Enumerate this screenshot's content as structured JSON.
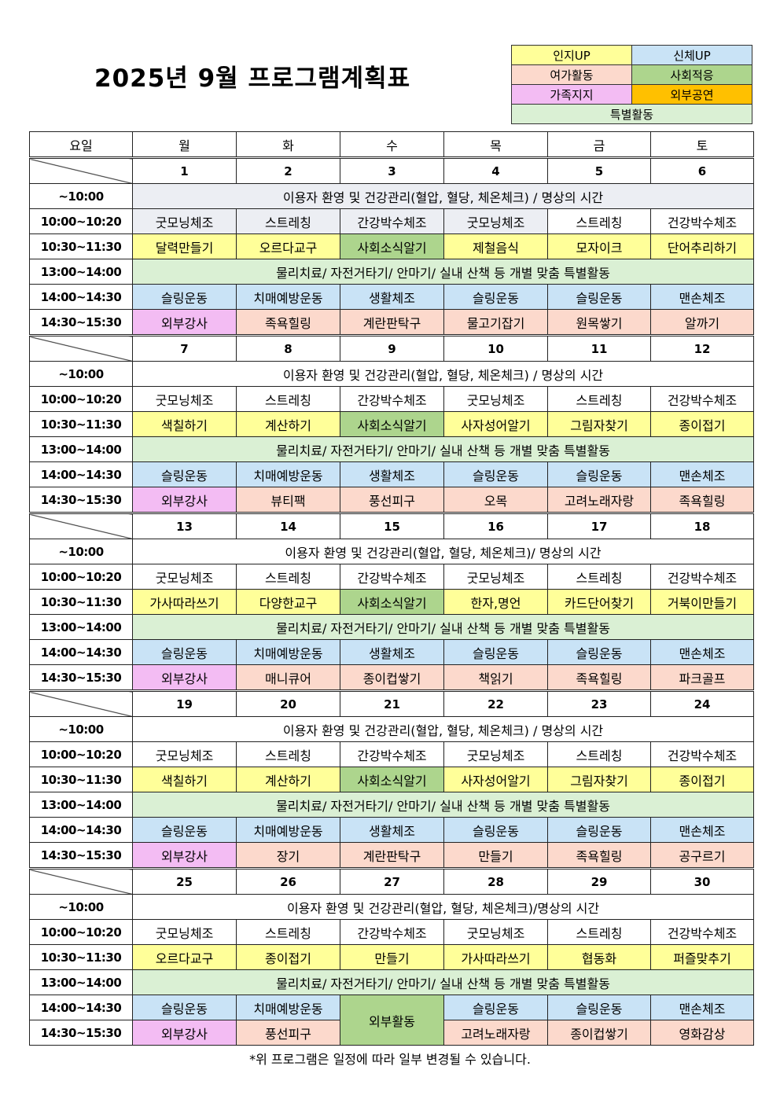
{
  "title": "2025년  9월  프로그램계획표",
  "legend": {
    "cognitive": {
      "label": "인지UP",
      "color": "#ffff99"
    },
    "physical": {
      "label": "신체UP",
      "color": "#c9e3f6"
    },
    "leisure": {
      "label": "여가활동",
      "color": "#fcd9cc"
    },
    "social": {
      "label": "사회적응",
      "color": "#add58d"
    },
    "family": {
      "label": "가족지지",
      "color": "#f3bcf3"
    },
    "outside": {
      "label": "외부공연",
      "color": "#ffc000"
    },
    "special": {
      "label": "특별활동",
      "color": "#daf0d4"
    }
  },
  "header": {
    "first": "요일",
    "days": [
      "월",
      "화",
      "수",
      "목",
      "금",
      "토"
    ]
  },
  "times": [
    "~10:00",
    "10:00~10:20",
    "10:30~11:30",
    "13:00~14:00",
    "14:00~14:30",
    "14:30~15:30"
  ],
  "weeks": [
    {
      "dates": [
        "1",
        "2",
        "3",
        "4",
        "5",
        "6"
      ],
      "greeting": "이용자 환영 및 건강관리(혈압, 혈당, 체온체크) / 명상의 시간",
      "morning": [
        "굿모닝체조",
        "스트레칭",
        "간강박수체조",
        "굿모닝체조",
        "스트레칭",
        "건강박수체조"
      ],
      "am": [
        [
          "달력만들기",
          "cog"
        ],
        [
          "오르다교구",
          "cog"
        ],
        [
          "사회소식알기",
          "soc"
        ],
        [
          "제철음식",
          "cog"
        ],
        [
          "모자이크",
          "cog"
        ],
        [
          "단어추리하기",
          "cog"
        ]
      ],
      "special": "물리치료/ 자전거타기/ 안마기/ 실내 산책 등 개별 맞춤 특별활동",
      "pm1": [
        [
          "슬링운동",
          "body"
        ],
        [
          "치매예방운동",
          "body"
        ],
        [
          "생활체조",
          "body"
        ],
        [
          "슬링운동",
          "body"
        ],
        [
          "슬링운동",
          "body"
        ],
        [
          "맨손체조",
          "body"
        ]
      ],
      "pm2": [
        [
          "외부강사",
          "fam"
        ],
        [
          "족욕힐링",
          "leis"
        ],
        [
          "계란판탁구",
          "leis"
        ],
        [
          "물고기잡기",
          "leis"
        ],
        [
          "원목쌓기",
          "leis"
        ],
        [
          "알까기",
          "leis"
        ]
      ]
    },
    {
      "dates": [
        "7",
        "8",
        "9",
        "10",
        "11",
        "12"
      ],
      "greeting": "이용자 환영 및 건강관리(혈압, 혈당, 체온체크) / 명상의 시간",
      "morning": [
        "굿모닝체조",
        "스트레칭",
        "간강박수체조",
        "굿모닝체조",
        "스트레칭",
        "건강박수체조"
      ],
      "am": [
        [
          "색칠하기",
          "cog"
        ],
        [
          "계산하기",
          "cog"
        ],
        [
          "사회소식알기",
          "soc"
        ],
        [
          "사자성어알기",
          "cog"
        ],
        [
          "그림자찾기",
          "cog"
        ],
        [
          "종이접기",
          "cog"
        ]
      ],
      "special": "물리치료/ 자전거타기/ 안마기/ 실내 산책 등 개별 맞춤 특별활동",
      "pm1": [
        [
          "슬링운동",
          "body"
        ],
        [
          "치매예방운동",
          "body"
        ],
        [
          "생활체조",
          "body"
        ],
        [
          "슬링운동",
          "body"
        ],
        [
          "슬링운동",
          "body"
        ],
        [
          "맨손체조",
          "body"
        ]
      ],
      "pm2": [
        [
          "외부강사",
          "fam"
        ],
        [
          "뷰티팩",
          "leis"
        ],
        [
          "풍선피구",
          "leis"
        ],
        [
          "오목",
          "leis"
        ],
        [
          "고려노래자랑",
          "leis"
        ],
        [
          "족욕힐링",
          "leis"
        ]
      ]
    },
    {
      "dates": [
        "13",
        "14",
        "15",
        "16",
        "17",
        "18"
      ],
      "greeting": "이용자 환영 및 건강관리(혈압, 혈당, 체온체크)/ 명상의 시간",
      "morning": [
        "굿모닝체조",
        "스트레칭",
        "간강박수체조",
        "굿모닝체조",
        "스트레칭",
        "건강박수체조"
      ],
      "am": [
        [
          "가사따라쓰기",
          "cog"
        ],
        [
          "다양한교구",
          "cog"
        ],
        [
          "사회소식알기",
          "soc"
        ],
        [
          "한자,명언",
          "cog"
        ],
        [
          "카드단어찾기",
          "cog"
        ],
        [
          "거북이만들기",
          "cog"
        ]
      ],
      "special": "물리치료/ 자전거타기/ 안마기/ 실내 산책 등 개별 맞춤 특별활동",
      "pm1": [
        [
          "슬링운동",
          "body"
        ],
        [
          "치매예방운동",
          "body"
        ],
        [
          "생활체조",
          "body"
        ],
        [
          "슬링운동",
          "body"
        ],
        [
          "슬링운동",
          "body"
        ],
        [
          "맨손체조",
          "body"
        ]
      ],
      "pm2": [
        [
          "외부강사",
          "fam"
        ],
        [
          "매니큐어",
          "leis"
        ],
        [
          "종이컵쌓기",
          "leis"
        ],
        [
          "책읽기",
          "leis"
        ],
        [
          "족욕힐링",
          "leis"
        ],
        [
          "파크골프",
          "leis"
        ]
      ]
    },
    {
      "dates": [
        "19",
        "20",
        "21",
        "22",
        "23",
        "24"
      ],
      "greeting": "이용자 환영 및 건강관리(혈압, 혈당, 체온체크) / 명상의 시간",
      "morning": [
        "굿모닝체조",
        "스트레칭",
        "간강박수체조",
        "굿모닝체조",
        "스트레칭",
        "건강박수체조"
      ],
      "am": [
        [
          "색칠하기",
          "cog"
        ],
        [
          "계산하기",
          "cog"
        ],
        [
          "사회소식알기",
          "soc"
        ],
        [
          "사자성어알기",
          "cog"
        ],
        [
          "그림자찾기",
          "cog"
        ],
        [
          "종이접기",
          "cog"
        ]
      ],
      "special": "물리치료/ 자전거타기/ 안마기/ 실내 산책 등 개별 맞춤 특별활동",
      "pm1": [
        [
          "슬링운동",
          "body"
        ],
        [
          "치매예방운동",
          "body"
        ],
        [
          "생활체조",
          "body"
        ],
        [
          "슬링운동",
          "body"
        ],
        [
          "슬링운동",
          "body"
        ],
        [
          "맨손체조",
          "body"
        ]
      ],
      "pm2": [
        [
          "외부강사",
          "fam"
        ],
        [
          "장기",
          "leis"
        ],
        [
          "계란판탁구",
          "leis"
        ],
        [
          "만들기",
          "leis"
        ],
        [
          "족욕힐링",
          "leis"
        ],
        [
          "공구르기",
          "leis"
        ]
      ]
    },
    {
      "dates": [
        "25",
        "26",
        "27",
        "28",
        "29",
        "30"
      ],
      "greeting": "이용자 환영 및 건강관리(혈압, 혈당, 체온체크)/명상의 시간",
      "morning": [
        "굿모닝체조",
        "스트레칭",
        "간강박수체조",
        "굿모닝체조",
        "스트레칭",
        "건강박수체조"
      ],
      "am": [
        [
          "오르다교구",
          "cog"
        ],
        [
          "종이접기",
          "cog"
        ],
        [
          "만들기",
          "cog"
        ],
        [
          "가사따라쓰기",
          "cog"
        ],
        [
          "협동화",
          "cog"
        ],
        [
          "퍼즐맞추기",
          "cog"
        ]
      ],
      "special": "물리치료/ 자전거타기/ 안마기/ 실내 산책 등 개별 맞춤 특별활동",
      "pm1": [
        [
          "슬링운동",
          "body"
        ],
        [
          "치매예방운동",
          "body"
        ],
        [
          "외부활동",
          "soc"
        ],
        [
          "슬링운동",
          "body"
        ],
        [
          "슬링운동",
          "body"
        ],
        [
          "맨손체조",
          "body"
        ]
      ],
      "pm2": [
        [
          "외부강사",
          "fam"
        ],
        [
          "풍선피구",
          "leis"
        ],
        null,
        [
          "고려노래자랑",
          "leis"
        ],
        [
          "종이컵쌓기",
          "leis"
        ],
        [
          "영화감상",
          "leis"
        ]
      ],
      "merged_afternoon_day": 2
    }
  ],
  "footer": "*위 프로그램은 일정에 따라 일부 변경될 수 있습니다."
}
